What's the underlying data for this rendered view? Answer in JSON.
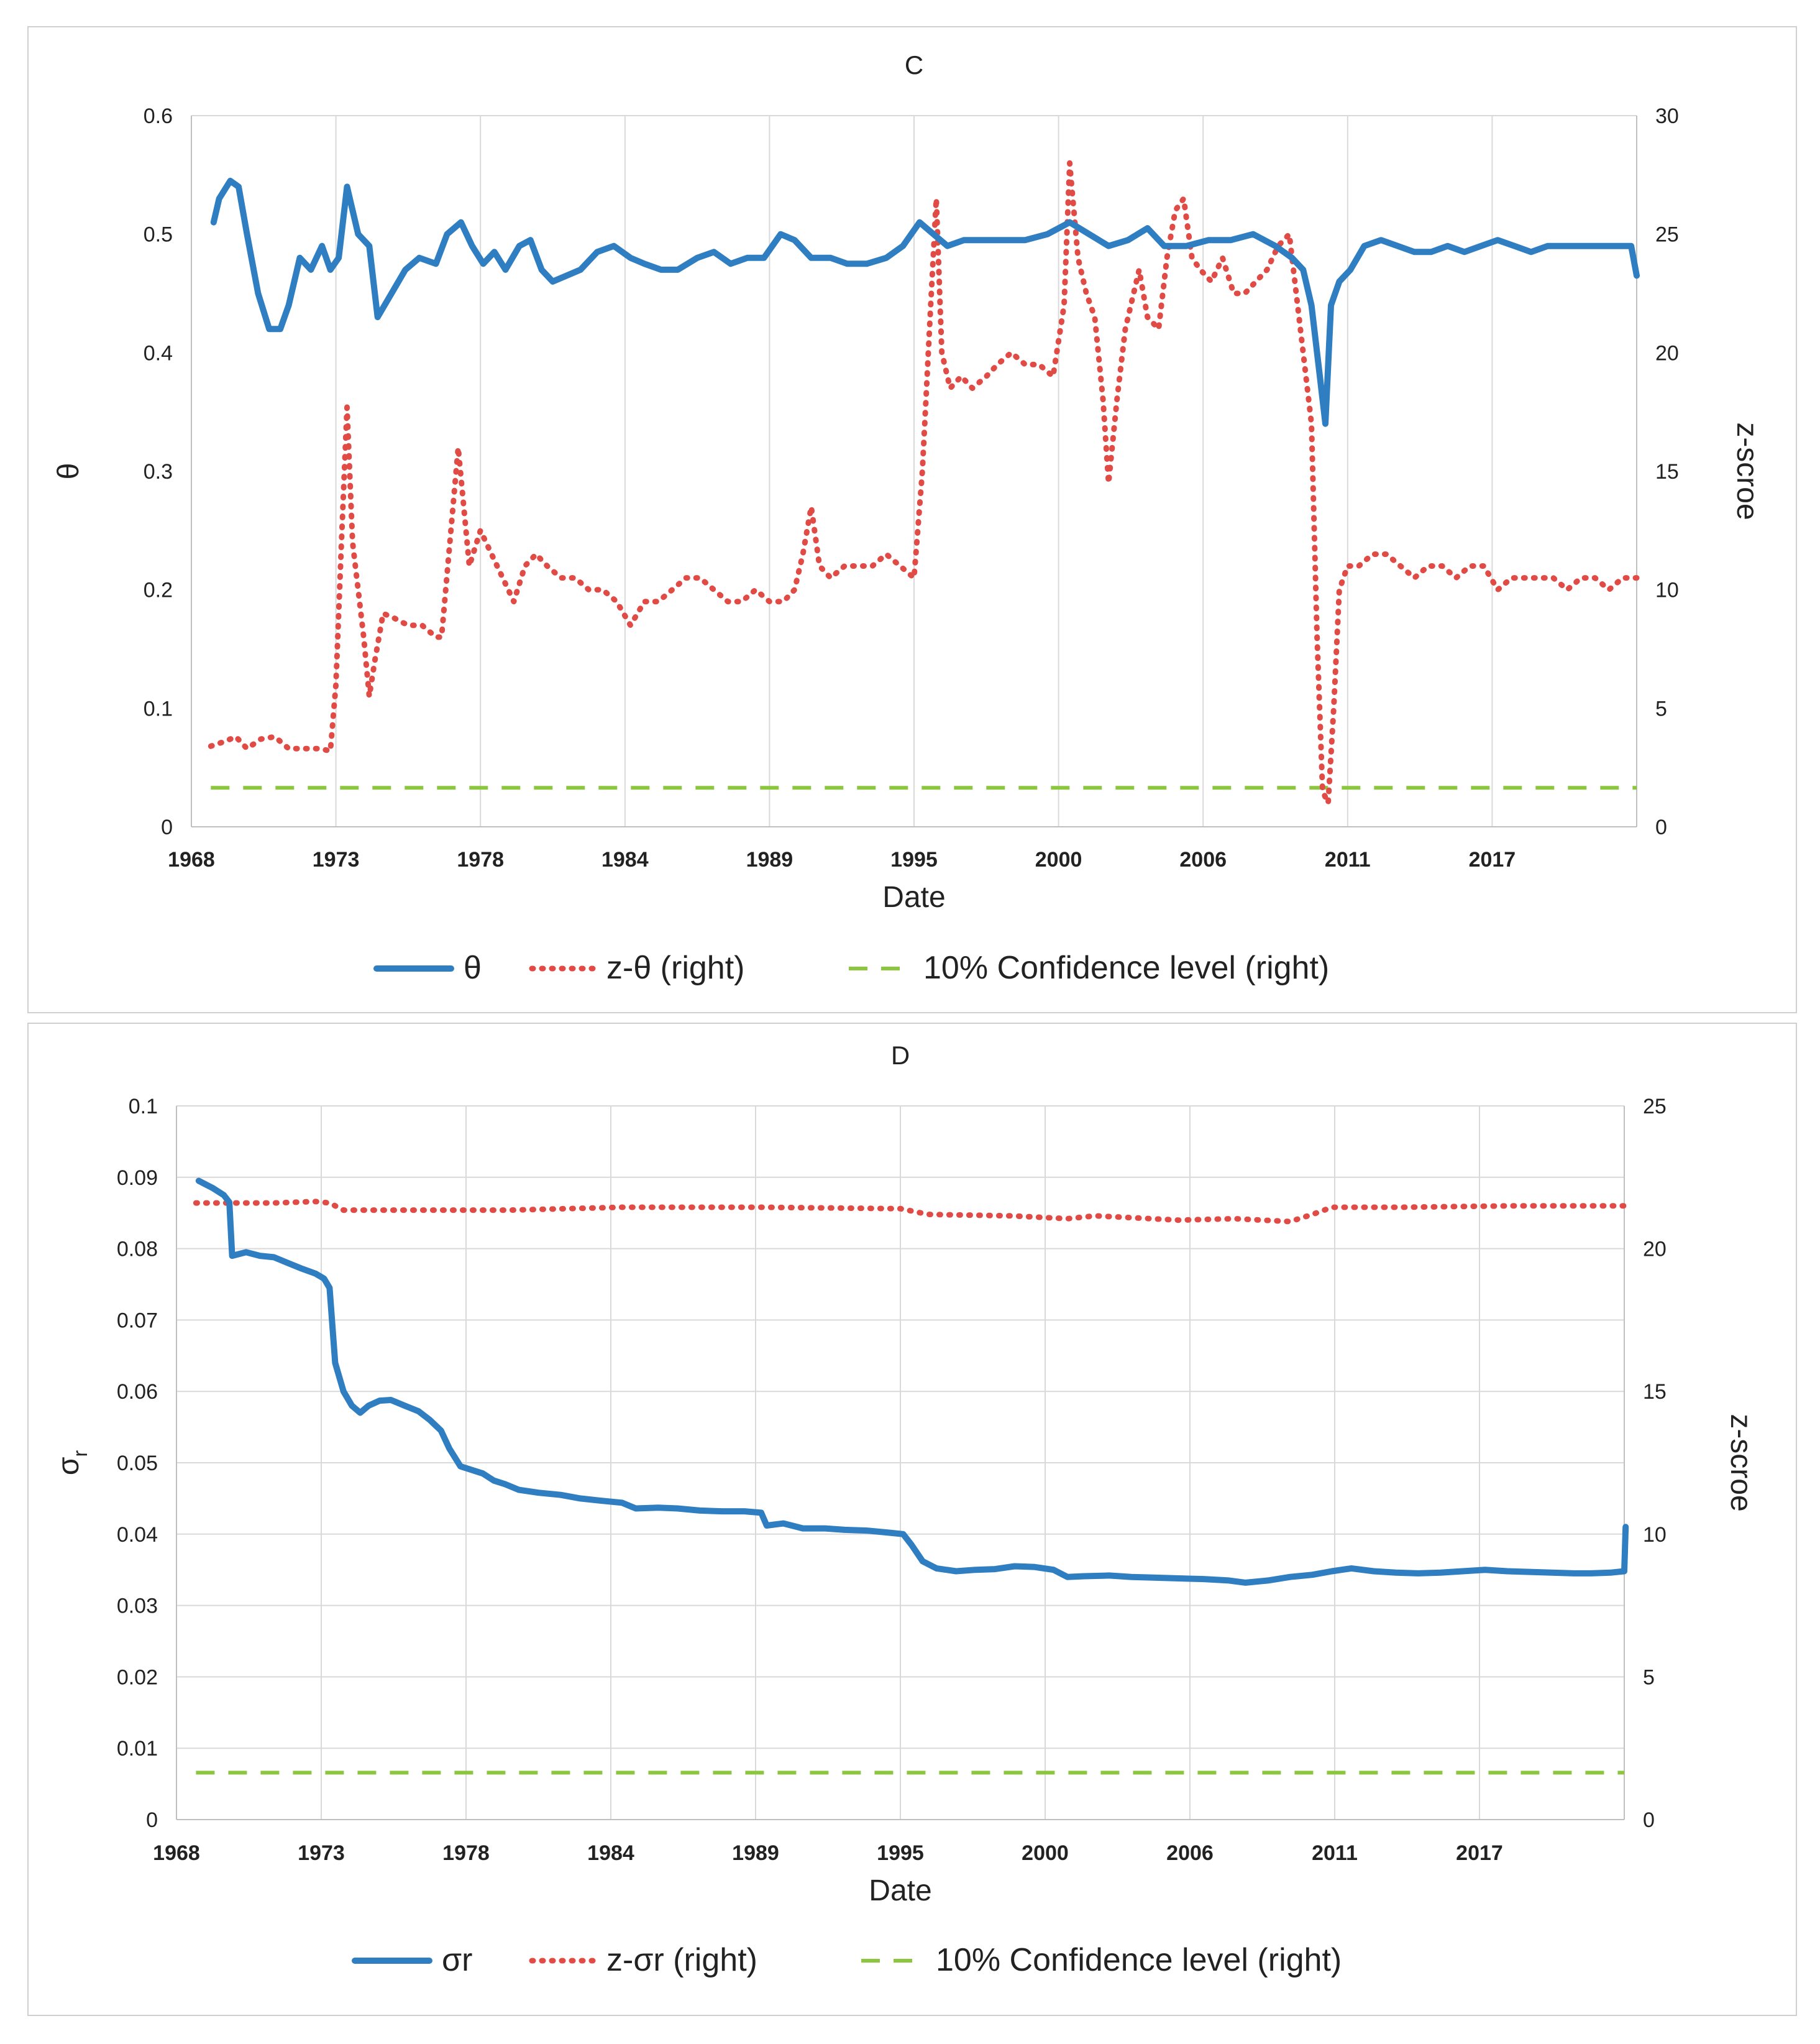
{
  "chart_data": [
    {
      "type": "line",
      "title": "C",
      "xlabel": "Date",
      "ylabel": "θ",
      "ylabel_right": "z-scroe",
      "x_tick_labels": [
        "1968",
        "1973",
        "1978",
        "1984",
        "1989",
        "1995",
        "2000",
        "2006",
        "2011",
        "2017"
      ],
      "xlim": [
        1968,
        2020
      ],
      "ylim": [
        0,
        0.6
      ],
      "y_ticks": [
        "0",
        "0.1",
        "0.2",
        "0.3",
        "0.4",
        "0.5",
        "0.6"
      ],
      "ylim_right": [
        0,
        30
      ],
      "y_ticks_right": [
        "0",
        "5",
        "10",
        "15",
        "20",
        "25",
        "30"
      ],
      "grid": "vertical",
      "legend_position": "bottom",
      "series": [
        {
          "name": "θ",
          "axis": "left",
          "style": "solid",
          "color": "#2E7EC1",
          "x": [
            1968.8,
            1969.0,
            1969.4,
            1969.7,
            1970.0,
            1970.4,
            1970.8,
            1971.2,
            1971.5,
            1971.9,
            1972.3,
            1972.7,
            1973.0,
            1973.3,
            1973.6,
            1974.0,
            1974.4,
            1974.7,
            1975.2,
            1975.7,
            1976.2,
            1976.8,
            1977.2,
            1977.7,
            1978.1,
            1978.5,
            1978.9,
            1979.3,
            1979.8,
            1980.2,
            1980.6,
            1981.0,
            1981.5,
            1982.0,
            1982.6,
            1983.2,
            1983.8,
            1984.3,
            1984.9,
            1985.5,
            1986.2,
            1986.8,
            1987.4,
            1988.0,
            1988.6,
            1989.2,
            1989.7,
            1990.3,
            1991.0,
            1991.6,
            1992.3,
            1993.0,
            1993.6,
            1994.2,
            1994.7,
            1995.2,
            1995.8,
            1996.5,
            1997.2,
            1998.0,
            1998.8,
            1999.6,
            2000.3,
            2001.0,
            2001.7,
            2002.4,
            2003.0,
            2003.8,
            2004.6,
            2005.4,
            2006.2,
            2007.0,
            2007.6,
            2008.0,
            2008.3,
            2008.6,
            2008.8,
            2009.0,
            2009.3,
            2009.7,
            2010.2,
            2010.8,
            2011.4,
            2012.0,
            2012.6,
            2013.2,
            2013.8,
            2014.4,
            2015.0,
            2015.6,
            2016.2,
            2016.8,
            2017.4,
            2018.0,
            2018.6,
            2019.2,
            2019.8,
            2020.0
          ],
          "values": [
            0.51,
            0.53,
            0.545,
            0.54,
            0.5,
            0.45,
            0.42,
            0.42,
            0.44,
            0.48,
            0.47,
            0.49,
            0.47,
            0.48,
            0.54,
            0.5,
            0.49,
            0.43,
            0.45,
            0.47,
            0.48,
            0.475,
            0.5,
            0.51,
            0.49,
            0.475,
            0.485,
            0.47,
            0.49,
            0.495,
            0.47,
            0.46,
            0.465,
            0.47,
            0.485,
            0.49,
            0.48,
            0.475,
            0.47,
            0.47,
            0.48,
            0.485,
            0.475,
            0.48,
            0.48,
            0.5,
            0.495,
            0.48,
            0.48,
            0.475,
            0.475,
            0.48,
            0.49,
            0.51,
            0.5,
            0.49,
            0.495,
            0.495,
            0.495,
            0.495,
            0.5,
            0.51,
            0.5,
            0.49,
            0.495,
            0.505,
            0.49,
            0.49,
            0.495,
            0.495,
            0.5,
            0.49,
            0.48,
            0.47,
            0.44,
            0.38,
            0.34,
            0.44,
            0.46,
            0.47,
            0.49,
            0.495,
            0.49,
            0.485,
            0.485,
            0.49,
            0.485,
            0.49,
            0.495,
            0.49,
            0.485,
            0.49,
            0.49,
            0.49,
            0.49,
            0.49,
            0.49,
            0.465
          ]
        },
        {
          "name": "z-θ (right)",
          "axis": "right",
          "style": "dotted",
          "color": "#E04B46",
          "x": [
            1968.7,
            1969.2,
            1969.6,
            1970.0,
            1970.5,
            1971.0,
            1971.5,
            1972.0,
            1972.6,
            1973.0,
            1973.2,
            1973.4,
            1973.6,
            1973.8,
            1974.0,
            1974.2,
            1974.4,
            1974.6,
            1974.9,
            1975.3,
            1975.8,
            1976.3,
            1976.8,
            1977.0,
            1977.3,
            1977.6,
            1978.0,
            1978.4,
            1978.8,
            1979.2,
            1979.6,
            1980.0,
            1980.4,
            1980.8,
            1981.3,
            1981.8,
            1982.3,
            1982.8,
            1983.3,
            1983.8,
            1984.3,
            1984.8,
            1985.3,
            1985.8,
            1986.3,
            1986.8,
            1987.3,
            1987.8,
            1988.3,
            1988.8,
            1989.3,
            1989.7,
            1990.0,
            1990.3,
            1990.6,
            1991.0,
            1991.5,
            1992.0,
            1992.5,
            1993.0,
            1993.5,
            1994.0,
            1994.3,
            1994.6,
            1994.8,
            1995.0,
            1995.3,
            1995.7,
            1996.1,
            1996.6,
            1997.0,
            1997.5,
            1998.0,
            1998.5,
            1999.0,
            1999.4,
            1999.6,
            1999.9,
            2000.2,
            2000.5,
            2000.8,
            2001.0,
            2001.3,
            2001.6,
            2001.9,
            2002.1,
            2002.4,
            2002.8,
            2003.1,
            2003.4,
            2003.7,
            2004.0,
            2004.3,
            2004.7,
            2005.1,
            2005.5,
            2005.9,
            2006.3,
            2006.7,
            2007.1,
            2007.5,
            2007.8,
            2008.1,
            2008.3,
            2008.5,
            2008.7,
            2008.9,
            2009.1,
            2009.3,
            2009.6,
            2010.0,
            2010.5,
            2011.0,
            2011.5,
            2012.0,
            2012.5,
            2013.0,
            2013.5,
            2014.0,
            2014.5,
            2015.0,
            2015.5,
            2016.0,
            2016.5,
            2017.0,
            2017.5,
            2018.0,
            2018.5,
            2019.0,
            2019.5,
            2020.0
          ],
          "values": [
            3.4,
            3.6,
            3.8,
            3.3,
            3.7,
            3.8,
            3.3,
            3.3,
            3.3,
            3.2,
            6.0,
            12.0,
            17.7,
            12.0,
            10.0,
            8.0,
            5.5,
            7.0,
            9.0,
            8.8,
            8.5,
            8.5,
            8.0,
            8.0,
            12.0,
            16.0,
            11.0,
            12.5,
            11.5,
            10.5,
            9.5,
            11.0,
            11.5,
            11.0,
            10.5,
            10.5,
            10.0,
            10.0,
            9.5,
            8.5,
            9.5,
            9.5,
            10.0,
            10.5,
            10.5,
            10.0,
            9.5,
            9.5,
            10.0,
            9.5,
            9.5,
            10.0,
            11.5,
            13.5,
            11.0,
            10.5,
            11.0,
            11.0,
            11.0,
            11.5,
            11.0,
            10.5,
            15.0,
            22.0,
            26.5,
            20.0,
            18.5,
            19.0,
            18.5,
            19.0,
            19.5,
            20.0,
            19.5,
            19.5,
            19.0,
            22.0,
            28.0,
            24.0,
            22.5,
            21.5,
            18.0,
            14.5,
            18.0,
            21.0,
            22.5,
            23.5,
            21.5,
            21.0,
            24.0,
            26.0,
            26.5,
            24.0,
            23.5,
            23.0,
            24.0,
            22.5,
            22.5,
            23.0,
            23.5,
            24.5,
            25.0,
            22.0,
            19.0,
            17.0,
            8.0,
            1.5,
            1.0,
            5.0,
            10.0,
            11.0,
            11.0,
            11.5,
            11.5,
            11.0,
            10.5,
            11.0,
            11.0,
            10.5,
            11.0,
            11.0,
            10.0,
            10.5,
            10.5,
            10.5,
            10.5,
            10.0,
            10.5,
            10.5,
            10.0,
            10.5,
            10.5
          ]
        },
        {
          "name": "10% Confidence level (right)",
          "axis": "right",
          "style": "dashed",
          "color": "#8CC63F",
          "x": [
            1968.7,
            2020.0
          ],
          "values": [
            1.645,
            1.645
          ]
        }
      ]
    },
    {
      "type": "line",
      "title": "D",
      "xlabel": "Date",
      "ylabel": "σr",
      "ylabel_main": "σ",
      "ylabel_sub": "r",
      "ylabel_right": "z-scroe",
      "x_tick_labels": [
        "1968",
        "1973",
        "1978",
        "1984",
        "1989",
        "1995",
        "2000",
        "2006",
        "2011",
        "2017"
      ],
      "xlim": [
        1968,
        2020
      ],
      "ylim": [
        0,
        0.1
      ],
      "y_ticks": [
        "0",
        "0.01",
        "0.02",
        "0.03",
        "0.04",
        "0.05",
        "0.06",
        "0.07",
        "0.08",
        "0.09",
        "0.1"
      ],
      "ylim_right": [
        0,
        25
      ],
      "y_ticks_right": [
        "0",
        "5",
        "10",
        "15",
        "20",
        "25"
      ],
      "grid": "both",
      "legend_position": "bottom",
      "series": [
        {
          "name": "σr",
          "axis": "left",
          "style": "solid",
          "color": "#2E7EC1",
          "x": [
            1968.8,
            1969.3,
            1969.7,
            1969.9,
            1970.0,
            1970.5,
            1971.0,
            1971.5,
            1972.0,
            1972.5,
            1973.0,
            1973.3,
            1973.5,
            1973.7,
            1974.0,
            1974.3,
            1974.6,
            1974.9,
            1975.3,
            1975.7,
            1976.2,
            1976.7,
            1977.1,
            1977.5,
            1977.8,
            1978.2,
            1978.6,
            1979.0,
            1979.4,
            1979.8,
            1980.3,
            1981.0,
            1981.8,
            1982.5,
            1983.2,
            1984.0,
            1984.5,
            1985.3,
            1986.0,
            1986.8,
            1987.6,
            1988.4,
            1989.0,
            1989.2,
            1989.8,
            1990.5,
            1991.3,
            1992.0,
            1992.8,
            1993.6,
            1994.1,
            1994.4,
            1994.8,
            1995.3,
            1996.0,
            1996.7,
            1997.4,
            1998.1,
            1998.8,
            1999.5,
            2000.0,
            2000.6,
            2001.5,
            2002.3,
            2003.1,
            2004.0,
            2004.9,
            2005.8,
            2006.4,
            2007.2,
            2008.0,
            2008.8,
            2009.5,
            2010.2,
            2011.0,
            2011.8,
            2012.6,
            2013.4,
            2014.2,
            2015.0,
            2015.8,
            2016.6,
            2017.4,
            2018.2,
            2018.8,
            2019.5,
            2020.0,
            2020.05
          ],
          "values": [
            0.0895,
            0.0885,
            0.0875,
            0.0865,
            0.079,
            0.0795,
            0.079,
            0.0788,
            0.078,
            0.0772,
            0.0765,
            0.0758,
            0.0745,
            0.064,
            0.06,
            0.058,
            0.057,
            0.058,
            0.0587,
            0.0588,
            0.058,
            0.0572,
            0.056,
            0.0545,
            0.052,
            0.0495,
            0.049,
            0.0485,
            0.0475,
            0.047,
            0.0462,
            0.0458,
            0.0455,
            0.045,
            0.0447,
            0.0444,
            0.0436,
            0.0437,
            0.0436,
            0.0433,
            0.0432,
            0.0432,
            0.043,
            0.0412,
            0.0415,
            0.0408,
            0.0408,
            0.0406,
            0.0405,
            0.0402,
            0.04,
            0.0385,
            0.0362,
            0.0352,
            0.0348,
            0.035,
            0.0351,
            0.0355,
            0.0354,
            0.035,
            0.034,
            0.0341,
            0.0342,
            0.034,
            0.0339,
            0.0338,
            0.0337,
            0.0335,
            0.0332,
            0.0335,
            0.034,
            0.0343,
            0.0348,
            0.0352,
            0.0348,
            0.0346,
            0.0345,
            0.0346,
            0.0348,
            0.035,
            0.0348,
            0.0347,
            0.0346,
            0.0345,
            0.0345,
            0.0346,
            0.0348,
            0.041
          ]
        },
        {
          "name": "z-σr (right)",
          "axis": "right",
          "style": "dotted",
          "color": "#E04B46",
          "x": [
            1968.7,
            1970.0,
            1971.5,
            1973.0,
            1973.5,
            1974.0,
            1975.0,
            1977.0,
            1980.0,
            1984.0,
            1989.0,
            1994.0,
            1995.0,
            1998.0,
            2000.0,
            2001.0,
            2004.0,
            2006.0,
            2008.0,
            2008.8,
            2009.5,
            2012.0,
            2016.0,
            2020.0
          ],
          "values": [
            21.6,
            21.6,
            21.6,
            21.65,
            21.6,
            21.35,
            21.35,
            21.35,
            21.35,
            21.45,
            21.45,
            21.4,
            21.2,
            21.15,
            21.05,
            21.15,
            21.0,
            21.05,
            20.95,
            21.2,
            21.45,
            21.45,
            21.5,
            21.5
          ]
        },
        {
          "name": "10% Confidence level (right)",
          "axis": "right",
          "style": "dashed",
          "color": "#8CC63F",
          "x": [
            1968.7,
            2020.0
          ],
          "values": [
            1.645,
            1.645
          ]
        }
      ]
    }
  ]
}
